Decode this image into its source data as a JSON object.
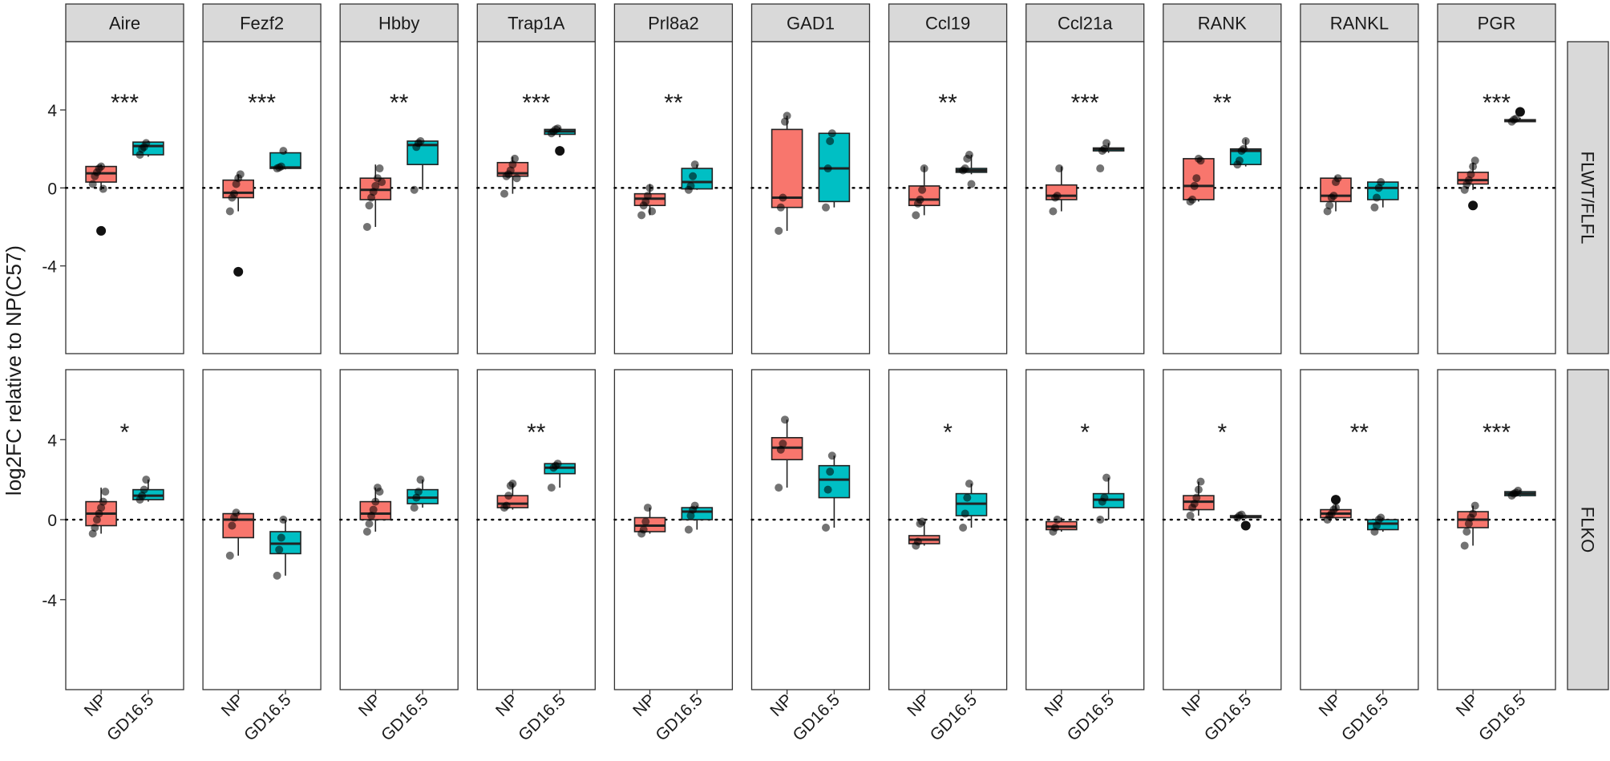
{
  "chart_data": {
    "type": "boxplot",
    "title": "",
    "xlabel": "",
    "ylabel": "log2FC relative to NP(C57)",
    "ylim": [
      -8.5,
      7.5
    ],
    "yticks": [
      -4,
      0,
      4
    ],
    "ytick_labels": [
      "-4",
      "0",
      "4"
    ],
    "reference_line": 0,
    "categories": [
      "NP",
      "GD16.5"
    ],
    "colors": {
      "NP": "#f8766d",
      "GD16.5": "#00bfc4"
    },
    "genes": [
      "Aire",
      "Fezf2",
      "Hbby",
      "Trap1A",
      "Prl8a2",
      "GAD1",
      "Ccl19",
      "Ccl21a",
      "RANK",
      "RANKL",
      "PGR"
    ],
    "rows": [
      {
        "name": "FLWT/FLFL",
        "panels": [
          {
            "gene": "Aire",
            "sig": "***",
            "NP": {
              "q1": 0.3,
              "median": 0.75,
              "q3": 1.1,
              "whisker_low": -0.1,
              "whisker_high": 1.2,
              "points": [
                0.2,
                0.6,
                0.8,
                1.0,
                1.1,
                -0.05
              ],
              "outliers": [
                -2.2
              ]
            },
            "GD16.5": {
              "q1": 1.7,
              "median": 2.15,
              "q3": 2.35,
              "whisker_low": 1.6,
              "whisker_high": 2.4,
              "points": [
                1.7,
                2.0,
                2.1,
                2.3
              ]
            }
          },
          {
            "gene": "Fezf2",
            "sig": "***",
            "NP": {
              "q1": -0.5,
              "median": -0.25,
              "q3": 0.4,
              "whisker_low": -1.2,
              "whisker_high": 0.7,
              "points": [
                -1.2,
                -0.5,
                -0.3,
                0.2,
                0.5,
                0.7
              ],
              "outliers": [
                -4.3
              ]
            },
            "GD16.5": {
              "q1": 1.0,
              "median": 1.05,
              "q3": 1.8,
              "whisker_low": 0.95,
              "whisker_high": 1.9,
              "points": [
                1.0,
                1.05,
                1.1,
                1.9
              ]
            }
          },
          {
            "gene": "Hbby",
            "sig": "**",
            "NP": {
              "q1": -0.6,
              "median": -0.1,
              "q3": 0.5,
              "whisker_low": -2.0,
              "whisker_high": 1.2,
              "points": [
                -2.0,
                -0.9,
                -0.5,
                -0.2,
                0.1,
                0.5,
                1.0,
                0.3
              ]
            },
            "GD16.5": {
              "q1": 1.2,
              "median": 2.2,
              "q3": 2.4,
              "whisker_low": -0.1,
              "whisker_high": 2.4,
              "points": [
                -0.1,
                2.1,
                2.3,
                2.4
              ]
            }
          },
          {
            "gene": "Trap1A",
            "sig": "***",
            "NP": {
              "q1": 0.6,
              "median": 0.75,
              "q3": 1.3,
              "whisker_low": -0.3,
              "whisker_high": 1.6,
              "points": [
                -0.3,
                0.6,
                0.7,
                0.9,
                1.2,
                1.5,
                0.5
              ]
            },
            "GD16.5": {
              "q1": 2.75,
              "median": 2.9,
              "q3": 3.0,
              "whisker_low": 2.6,
              "whisker_high": 3.1,
              "points": [
                2.8,
                2.9,
                3.0,
                3.05
              ],
              "outliers": [
                1.9
              ]
            }
          },
          {
            "gene": "Prl8a2",
            "sig": "**",
            "NP": {
              "q1": -0.9,
              "median": -0.55,
              "q3": -0.3,
              "whisker_low": -1.4,
              "whisker_high": 0.2,
              "points": [
                -1.4,
                -0.9,
                -0.7,
                -0.4,
                0.0,
                -1.2
              ]
            },
            "GD16.5": {
              "q1": -0.05,
              "median": 0.3,
              "q3": 1.0,
              "whisker_low": -0.1,
              "whisker_high": 1.2,
              "points": [
                -0.1,
                0.1,
                0.6,
                1.2
              ]
            }
          },
          {
            "gene": "GAD1",
            "sig": "",
            "NP": {
              "q1": -1.0,
              "median": -0.5,
              "q3": 3.0,
              "whisker_low": -2.2,
              "whisker_high": 3.7,
              "points": [
                -2.2,
                -1.0,
                -0.5,
                3.4,
                3.7
              ]
            },
            "GD16.5": {
              "q1": -0.7,
              "median": 1.0,
              "q3": 2.8,
              "whisker_low": -1.0,
              "whisker_high": 2.8,
              "points": [
                -1.0,
                1.0,
                2.4,
                2.8
              ]
            }
          },
          {
            "gene": "Ccl19",
            "sig": "**",
            "NP": {
              "q1": -0.9,
              "median": -0.6,
              "q3": 0.1,
              "whisker_low": -1.4,
              "whisker_high": 1.1,
              "points": [
                -1.4,
                -0.8,
                -0.6,
                -0.1,
                1.0
              ]
            },
            "GD16.5": {
              "q1": 0.8,
              "median": 0.9,
              "q3": 1.0,
              "whisker_low": 0.7,
              "whisker_high": 1.7,
              "points": [
                0.9,
                1.0,
                1.5,
                1.7,
                0.2
              ]
            }
          },
          {
            "gene": "Ccl21a",
            "sig": "***",
            "NP": {
              "q1": -0.6,
              "median": -0.4,
              "q3": 0.15,
              "whisker_low": -1.2,
              "whisker_high": 1.1,
              "points": [
                -1.2,
                -0.5,
                -0.4,
                1.0
              ]
            },
            "GD16.5": {
              "q1": 1.9,
              "median": 2.0,
              "q3": 2.05,
              "whisker_low": 1.8,
              "whisker_high": 2.3,
              "points": [
                1.0,
                1.9,
                2.0,
                2.3
              ]
            }
          },
          {
            "gene": "RANK",
            "sig": "**",
            "NP": {
              "q1": -0.6,
              "median": 0.1,
              "q3": 1.5,
              "whisker_low": -0.7,
              "whisker_high": 1.5,
              "points": [
                -0.7,
                -0.6,
                0.1,
                0.5,
                1.5,
                1.4
              ]
            },
            "GD16.5": {
              "q1": 1.2,
              "median": 1.9,
              "q3": 2.0,
              "whisker_low": 1.1,
              "whisker_high": 2.5,
              "points": [
                1.2,
                1.4,
                1.9,
                2.0,
                2.4
              ]
            }
          },
          {
            "gene": "RANKL",
            "sig": "",
            "NP": {
              "q1": -0.7,
              "median": -0.4,
              "q3": 0.5,
              "whisker_low": -1.2,
              "whisker_high": 0.6,
              "points": [
                -1.2,
                -0.9,
                -0.5,
                -0.4,
                0.3,
                0.5
              ]
            },
            "GD16.5": {
              "q1": -0.6,
              "median": 0.0,
              "q3": 0.3,
              "whisker_low": -1.0,
              "whisker_high": 0.3,
              "points": [
                -1.0,
                -0.5,
                0.0,
                0.3
              ]
            }
          },
          {
            "gene": "PGR",
            "sig": "***",
            "NP": {
              "q1": 0.2,
              "median": 0.4,
              "q3": 0.8,
              "whisker_low": -0.1,
              "whisker_high": 1.3,
              "points": [
                -0.1,
                0.2,
                0.4,
                0.7,
                1.1,
                1.4
              ],
              "outliers": [
                -0.9
              ]
            },
            "GD16.5": {
              "q1": 3.4,
              "median": 3.45,
              "q3": 3.5,
              "whisker_low": 3.4,
              "whisker_high": 3.6,
              "points": [
                3.4,
                3.5,
                3.55
              ],
              "outliers": [
                3.9
              ]
            }
          }
        ]
      },
      {
        "name": "FLKO",
        "panels": [
          {
            "gene": "Aire",
            "sig": "*",
            "NP": {
              "q1": -0.3,
              "median": 0.3,
              "q3": 0.9,
              "whisker_low": -0.7,
              "whisker_high": 1.6,
              "points": [
                -0.7,
                -0.4,
                0.0,
                0.3,
                0.6,
                0.9,
                1.4
              ]
            },
            "GD16.5": {
              "q1": 1.0,
              "median": 1.2,
              "q3": 1.5,
              "whisker_low": 0.9,
              "whisker_high": 2.0,
              "points": [
                1.0,
                1.2,
                1.5,
                2.0
              ]
            }
          },
          {
            "gene": "Fezf2",
            "sig": "",
            "NP": {
              "q1": -0.9,
              "median": 0.0,
              "q3": 0.3,
              "whisker_low": -1.8,
              "whisker_high": 0.4,
              "points": [
                -1.8,
                -0.3,
                0.1,
                0.35
              ]
            },
            "GD16.5": {
              "q1": -1.7,
              "median": -1.2,
              "q3": -0.6,
              "whisker_low": -2.8,
              "whisker_high": 0.0,
              "points": [
                -2.8,
                -1.5,
                -0.9,
                0.0
              ]
            }
          },
          {
            "gene": "Hbby",
            "sig": "",
            "NP": {
              "q1": 0.0,
              "median": 0.3,
              "q3": 0.9,
              "whisker_low": -0.6,
              "whisker_high": 1.6,
              "points": [
                -0.6,
                -0.2,
                0.2,
                0.5,
                0.9,
                1.6,
                1.4
              ]
            },
            "GD16.5": {
              "q1": 0.8,
              "median": 1.1,
              "q3": 1.5,
              "whisker_low": 0.6,
              "whisker_high": 2.0,
              "points": [
                0.6,
                1.1,
                1.4,
                2.0
              ]
            }
          },
          {
            "gene": "Trap1A",
            "sig": "**",
            "NP": {
              "q1": 0.6,
              "median": 0.8,
              "q3": 1.2,
              "whisker_low": 0.5,
              "whisker_high": 1.8,
              "points": [
                0.6,
                0.7,
                1.2,
                1.7,
                1.8
              ]
            },
            "GD16.5": {
              "q1": 2.3,
              "median": 2.6,
              "q3": 2.8,
              "whisker_low": 1.6,
              "whisker_high": 2.8,
              "points": [
                1.6,
                2.6,
                2.7,
                2.8
              ]
            }
          },
          {
            "gene": "Prl8a2",
            "sig": "",
            "NP": {
              "q1": -0.6,
              "median": -0.3,
              "q3": 0.1,
              "whisker_low": -0.7,
              "whisker_high": 0.6,
              "points": [
                -0.7,
                -0.5,
                -0.1,
                0.6
              ]
            },
            "GD16.5": {
              "q1": 0.0,
              "median": 0.4,
              "q3": 0.6,
              "whisker_low": -0.5,
              "whisker_high": 0.7,
              "points": [
                -0.5,
                0.2,
                0.5,
                0.7
              ]
            }
          },
          {
            "gene": "GAD1",
            "sig": "",
            "NP": {
              "q1": 3.0,
              "median": 3.6,
              "q3": 4.1,
              "whisker_low": 1.6,
              "whisker_high": 5.0,
              "points": [
                1.6,
                3.5,
                3.8,
                5.0
              ]
            },
            "GD16.5": {
              "q1": 1.1,
              "median": 2.0,
              "q3": 2.7,
              "whisker_low": -0.4,
              "whisker_high": 3.2,
              "points": [
                -0.4,
                1.5,
                2.4,
                3.2
              ]
            }
          },
          {
            "gene": "Ccl19",
            "sig": "*",
            "NP": {
              "q1": -1.2,
              "median": -1.0,
              "q3": -0.8,
              "whisker_low": -1.3,
              "whisker_high": -0.1,
              "points": [
                -1.3,
                -1.1,
                -0.2,
                -0.1
              ]
            },
            "GD16.5": {
              "q1": 0.2,
              "median": 0.8,
              "q3": 1.3,
              "whisker_low": -0.4,
              "whisker_high": 1.8,
              "points": [
                -0.4,
                0.3,
                1.1,
                1.8
              ]
            }
          },
          {
            "gene": "Ccl21a",
            "sig": "*",
            "NP": {
              "q1": -0.5,
              "median": -0.35,
              "q3": -0.1,
              "whisker_low": -0.6,
              "whisker_high": 0.1,
              "points": [
                -0.6,
                -0.4,
                0.0
              ]
            },
            "GD16.5": {
              "q1": 0.6,
              "median": 1.0,
              "q3": 1.3,
              "whisker_low": 0.0,
              "whisker_high": 2.1,
              "points": [
                0.0,
                0.9,
                1.1,
                2.1
              ]
            }
          },
          {
            "gene": "RANK",
            "sig": "*",
            "NP": {
              "q1": 0.5,
              "median": 0.9,
              "q3": 1.2,
              "whisker_low": 0.2,
              "whisker_high": 1.9,
              "points": [
                0.2,
                0.6,
                0.8,
                1.1,
                1.5,
                1.9
              ]
            },
            "GD16.5": {
              "q1": 0.1,
              "median": 0.15,
              "q3": 0.2,
              "whisker_low": 0.05,
              "whisker_high": 0.25,
              "points": [
                0.1,
                0.2,
                0.25
              ],
              "outliers": [
                -0.3
              ]
            }
          },
          {
            "gene": "RANKL",
            "sig": "**",
            "NP": {
              "q1": 0.1,
              "median": 0.3,
              "q3": 0.5,
              "whisker_low": 0.0,
              "whisker_high": 0.8,
              "points": [
                0.0,
                0.2,
                0.3,
                0.5,
                0.6
              ],
              "outliers": [
                1.0
              ]
            },
            "GD16.5": {
              "q1": -0.5,
              "median": -0.2,
              "q3": 0.0,
              "whisker_low": -0.6,
              "whisker_high": 0.1,
              "points": [
                -0.6,
                -0.3,
                0.0,
                0.1
              ]
            }
          },
          {
            "gene": "PGR",
            "sig": "***",
            "NP": {
              "q1": -0.4,
              "median": 0.0,
              "q3": 0.4,
              "whisker_low": -1.3,
              "whisker_high": 0.7,
              "points": [
                -1.3,
                -0.6,
                -0.2,
                0.1,
                0.3,
                0.7
              ]
            },
            "GD16.5": {
              "q1": 1.2,
              "median": 1.3,
              "q3": 1.4,
              "whisker_low": 1.15,
              "whisker_high": 1.5,
              "points": [
                1.2,
                1.3,
                1.35,
                1.45
              ]
            }
          }
        ]
      }
    ]
  }
}
